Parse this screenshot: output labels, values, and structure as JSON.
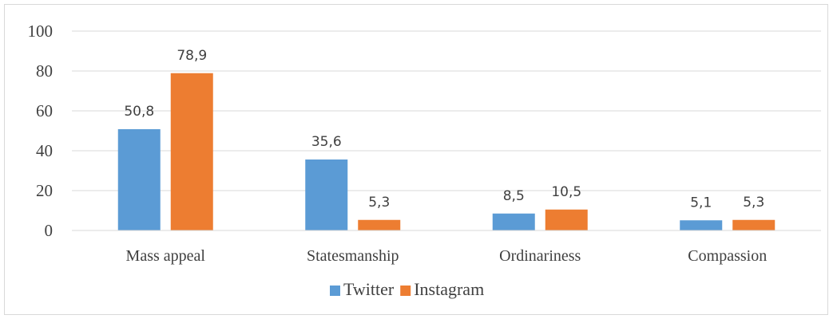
{
  "chart_data": {
    "type": "bar",
    "categories": [
      "Mass appeal",
      "Statesmanship",
      "Ordinariness",
      "Compassion"
    ],
    "series": [
      {
        "name": "Twitter",
        "values": [
          50.8,
          35.6,
          8.5,
          5.1
        ],
        "labels": [
          "50,8",
          "35,6",
          "8,5",
          "5,1"
        ],
        "color": "#5b9bd5"
      },
      {
        "name": "Instagram",
        "values": [
          78.9,
          5.3,
          10.5,
          5.3
        ],
        "labels": [
          "78,9",
          "5,3",
          "10,5",
          "5,3"
        ],
        "color": "#ed7d31"
      }
    ],
    "yticks": [
      "0",
      "20",
      "40",
      "60",
      "80",
      "100"
    ],
    "ylim": [
      0,
      100
    ],
    "grid": true,
    "legend_position": "bottom",
    "title": "",
    "xlabel": "",
    "ylabel": ""
  }
}
